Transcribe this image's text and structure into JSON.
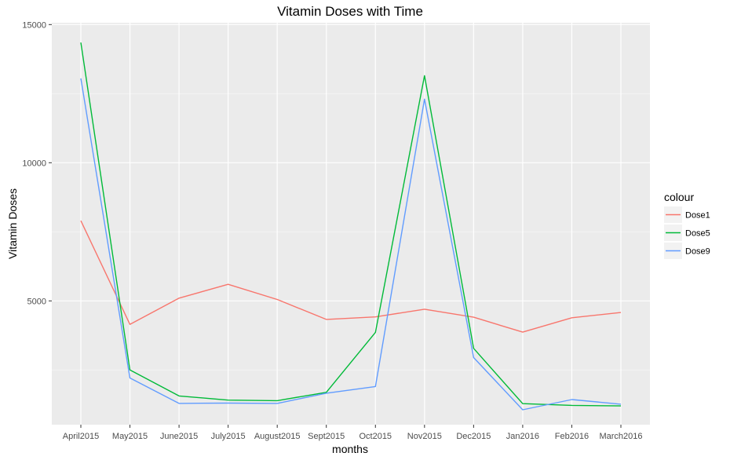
{
  "chart_data": {
    "type": "line",
    "title": "Vitamin Doses with Time",
    "xlabel": "months",
    "ylabel": "Vitamin Doses",
    "categories": [
      "April2015",
      "May2015",
      "June2015",
      "July2015",
      "August2015",
      "Sept2015",
      "Oct2015",
      "Nov2015",
      "Dec2015",
      "Jan2016",
      "Feb2016",
      "March2016"
    ],
    "yticks": [
      5000,
      10000,
      15000
    ],
    "ytick_labels": [
      "5000",
      "10000",
      "15000"
    ],
    "ylim": [
      0,
      15000
    ],
    "grid": true,
    "legend": {
      "title": "colour",
      "position": "right"
    },
    "series": [
      {
        "name": "Dose1",
        "color": "#F8766D",
        "values": [
          7900,
          4150,
          5100,
          5600,
          5050,
          4330,
          4420,
          4700,
          4410,
          3870,
          4390,
          4580
        ]
      },
      {
        "name": "Dose5",
        "color": "#00BA38",
        "values": [
          14350,
          2500,
          1560,
          1410,
          1390,
          1690,
          3860,
          13150,
          3280,
          1280,
          1220,
          1200
        ]
      },
      {
        "name": "Dose9",
        "color": "#619CFF",
        "values": [
          13050,
          2210,
          1290,
          1300,
          1290,
          1660,
          1900,
          12300,
          2950,
          1060,
          1430,
          1260
        ]
      }
    ]
  }
}
